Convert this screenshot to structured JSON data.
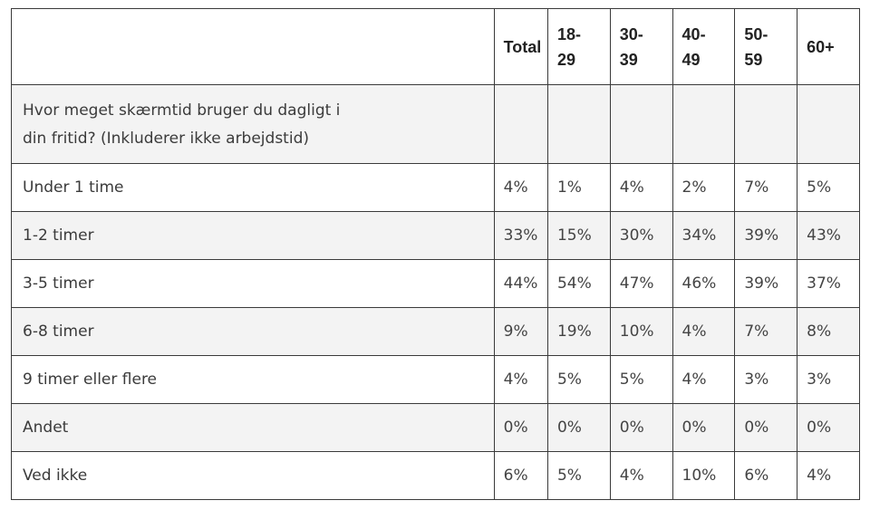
{
  "table": {
    "headers": [
      "",
      "Total",
      "18-29",
      "30-39",
      "40-49",
      "50-59",
      "60+"
    ],
    "header_lines": [
      [
        ""
      ],
      [
        "Total"
      ],
      [
        "18-",
        "29"
      ],
      [
        "30-",
        "39"
      ],
      [
        "40-",
        "49"
      ],
      [
        "50-",
        "59"
      ],
      [
        "60+"
      ]
    ],
    "question": "Hvor meget skærmtid bruger du dagligt i din fritid? (Inkluderer ikke arbejdstid)",
    "question_lines": [
      "Hvor meget skærmtid bruger du dagligt i",
      "din fritid? (Inkluderer ikke arbejdstid)"
    ],
    "rows": [
      {
        "label": "Under 1 time",
        "values": [
          "4%",
          "1%",
          "4%",
          "2%",
          "7%",
          "5%"
        ]
      },
      {
        "label": "1-2 timer",
        "values": [
          "33%",
          "15%",
          "30%",
          "34%",
          "39%",
          "43%"
        ]
      },
      {
        "label": "3-5 timer",
        "values": [
          "44%",
          "54%",
          "47%",
          "46%",
          "39%",
          "37%"
        ]
      },
      {
        "label": "6-8 timer",
        "values": [
          "9%",
          "19%",
          "10%",
          "4%",
          "7%",
          "8%"
        ]
      },
      {
        "label": "9 timer eller flere",
        "values": [
          "4%",
          "5%",
          "5%",
          "4%",
          "3%",
          "3%"
        ]
      },
      {
        "label": "Andet",
        "values": [
          "0%",
          "0%",
          "0%",
          "0%",
          "0%",
          "0%"
        ]
      },
      {
        "label": "Ved ikke",
        "values": [
          "6%",
          "5%",
          "4%",
          "10%",
          "6%",
          "4%"
        ]
      }
    ]
  },
  "colors": {
    "border": "#3a3a3a",
    "shaded_row": "#f3f3f3",
    "text": "#333333"
  }
}
